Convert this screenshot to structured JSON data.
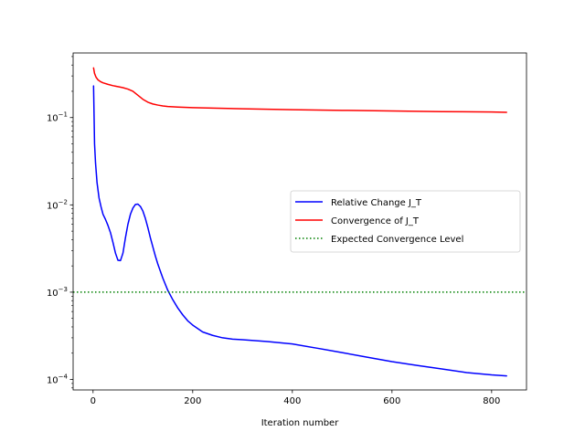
{
  "chart_data": {
    "type": "line",
    "title": "",
    "xlabel": "Iteration number",
    "ylabel": "",
    "xscale": "linear",
    "yscale": "log",
    "xlim": [
      -40,
      870
    ],
    "ylim_exp": [
      -4.12,
      -0.26
    ],
    "xticks": [
      0,
      200,
      400,
      600,
      800
    ],
    "xtick_labels": [
      "0",
      "200",
      "400",
      "600",
      "800"
    ],
    "yticks": [
      {
        "exp": -1,
        "base": "10",
        "sup": "−1"
      },
      {
        "exp": -2,
        "base": "10",
        "sup": "−2"
      },
      {
        "exp": -3,
        "base": "10",
        "sup": "−3"
      },
      {
        "exp": -4,
        "base": "10",
        "sup": "−4"
      }
    ],
    "grid": false,
    "legend_position": "center-right",
    "series": [
      {
        "name": "Relative Change J_T",
        "color": "#0000ff",
        "style": "solid",
        "x": [
          1,
          3,
          5,
          8,
          12,
          16,
          20,
          25,
          30,
          35,
          40,
          45,
          50,
          55,
          60,
          65,
          70,
          75,
          80,
          85,
          90,
          95,
          100,
          105,
          110,
          115,
          120,
          125,
          130,
          140,
          150,
          160,
          170,
          180,
          190,
          200,
          220,
          240,
          260,
          280,
          300,
          350,
          400,
          450,
          500,
          550,
          600,
          650,
          700,
          750,
          800,
          830
        ],
        "y": [
          0.23,
          0.05,
          0.03,
          0.018,
          0.012,
          0.0095,
          0.0078,
          0.0068,
          0.0058,
          0.0048,
          0.0037,
          0.0028,
          0.00232,
          0.0023,
          0.0028,
          0.0042,
          0.006,
          0.0078,
          0.0092,
          0.0101,
          0.0102,
          0.0096,
          0.0085,
          0.007,
          0.0055,
          0.0042,
          0.0033,
          0.0026,
          0.0021,
          0.00145,
          0.00105,
          0.00082,
          0.00066,
          0.00055,
          0.00047,
          0.00042,
          0.00035,
          0.00032,
          0.0003,
          0.00029,
          0.000285,
          0.000272,
          0.000255,
          0.000228,
          0.000203,
          0.00018,
          0.00016,
          0.000145,
          0.000132,
          0.00012,
          0.000113,
          0.00011
        ]
      },
      {
        "name": "Convergence of J_T",
        "color": "#ff0000",
        "style": "solid",
        "x": [
          1,
          3,
          6,
          10,
          15,
          20,
          30,
          40,
          50,
          60,
          70,
          80,
          90,
          100,
          110,
          120,
          130,
          140,
          150,
          170,
          200,
          250,
          300,
          400,
          500,
          600,
          700,
          800,
          830
        ],
        "y": [
          0.37,
          0.32,
          0.29,
          0.27,
          0.258,
          0.25,
          0.24,
          0.232,
          0.226,
          0.22,
          0.212,
          0.2,
          0.18,
          0.162,
          0.15,
          0.143,
          0.139,
          0.136,
          0.134,
          0.132,
          0.13,
          0.128,
          0.126,
          0.123,
          0.121,
          0.119,
          0.117,
          0.116,
          0.115
        ]
      },
      {
        "name": "Expected Convergence Level",
        "color": "#008000",
        "style": "dotted",
        "x": [
          -40,
          870
        ],
        "y": [
          0.001,
          0.001
        ]
      }
    ]
  }
}
